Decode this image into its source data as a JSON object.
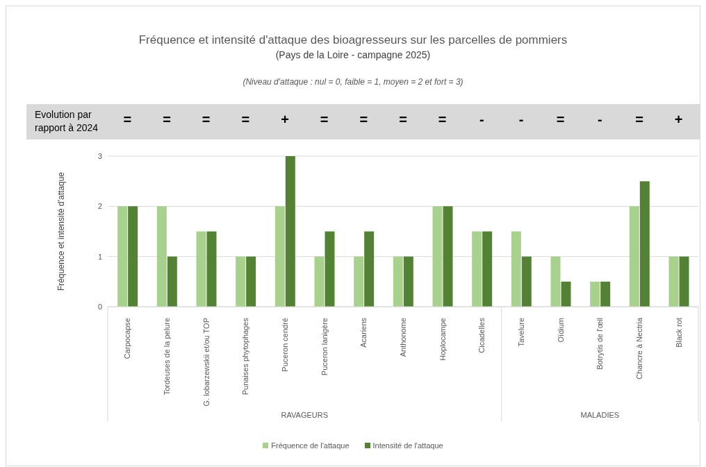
{
  "chart_data": {
    "type": "bar",
    "title": "Fréquence et intensité d'attaque des bioagresseurs sur les parcelles de pommiers",
    "subtitle": "(Pays de la Loire - campagne 2025)",
    "ylabel": "Fréquence et intensité d'attaque",
    "categories": [
      "Carpocapse",
      "Tordeuses de la pelure",
      "G. lobarzewskii et/ou TOP",
      "Punaises phytophages",
      "Puceron cendré",
      "Puceron lanigère",
      "Acariens",
      "Anthonome",
      "Hoplocampe",
      "Cicadelles",
      "Tavelure",
      "Oïdium",
      "Botrytis de l'œil",
      "Chancre à Nectria",
      "Black rot"
    ],
    "series": [
      {
        "name": "Fréquence de l'attaque",
        "color": "#a9d18e",
        "values": [
          2,
          2,
          1.5,
          1,
          2,
          1,
          1,
          1,
          2,
          1.5,
          1.5,
          1,
          0.5,
          2,
          1
        ]
      },
      {
        "name": "Intensité de l'attaque",
        "color": "#548235",
        "values": [
          2,
          1,
          1.5,
          1,
          3,
          1.5,
          1.5,
          1,
          2,
          1.5,
          1,
          0.5,
          0.5,
          2.5,
          1
        ]
      }
    ],
    "ylim": [
      0,
      3
    ],
    "yticks": [
      0,
      1,
      2,
      3
    ],
    "grid": "y",
    "legend": "bottom",
    "annotations": [
      "(Niveau d'attaque : nul = 0, faible = 1, moyen = 2 et fort = 3)",
      "Evolution par rapport à 2024",
      "=",
      "=",
      "=",
      "=",
      "+",
      "=",
      "=",
      "=",
      "=",
      "-",
      "-",
      "=",
      "-",
      "=",
      "+",
      "RAVAGEURS",
      "MALADIES"
    ]
  }
}
